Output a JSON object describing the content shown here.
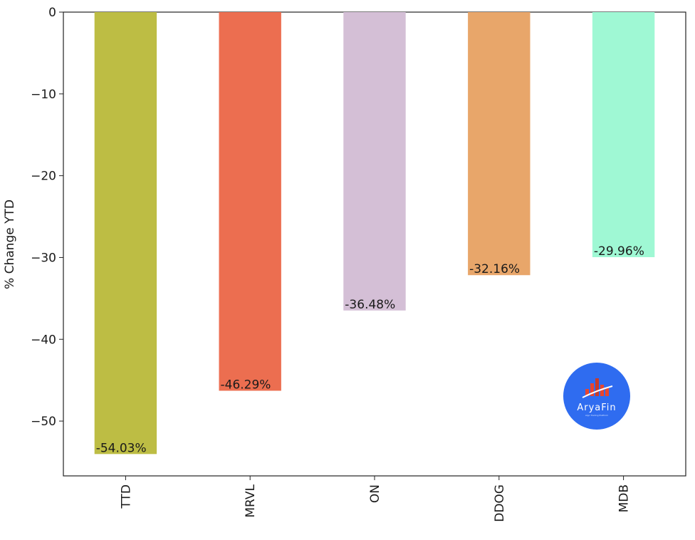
{
  "chart_data": {
    "type": "bar",
    "categories": [
      "TTD",
      "MRVL",
      "ON",
      "DDOG",
      "MDB"
    ],
    "values": [
      -54.03,
      -46.29,
      -36.48,
      -32.16,
      -29.96
    ],
    "data_labels": [
      "-54.03%",
      "-46.29%",
      "-36.48%",
      "-32.16%",
      "-29.96%"
    ],
    "colors": [
      "#bdbd44",
      "#ec6e50",
      "#d4bfd6",
      "#e8a66a",
      "#9ff8d4"
    ],
    "ylabel": "% Change YTD",
    "xlabel": "",
    "ylim": [
      -56.7,
      0
    ],
    "yticks": [
      0,
      -10,
      -20,
      -30,
      -40,
      -50
    ],
    "ytick_labels": [
      "0",
      "−10",
      "−20",
      "−30",
      "−40",
      "−50"
    ],
    "grid": false,
    "legend": "none"
  },
  "watermark": {
    "name": "AryaFin",
    "tagline": "Algo Trading Platform",
    "color": "#2f6cf0"
  }
}
